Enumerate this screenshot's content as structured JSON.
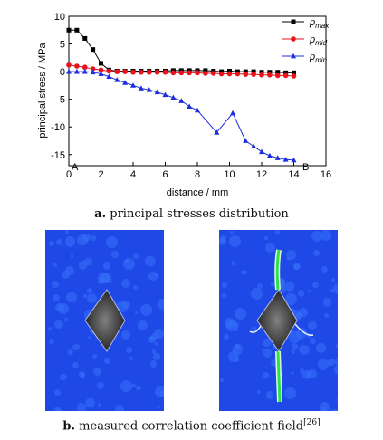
{
  "chart_data": {
    "type": "line",
    "xlabel": "distance / mm",
    "ylabel": "principal stress / MPa",
    "xlim": [
      0,
      16
    ],
    "ylim": [
      -17,
      10
    ],
    "xticks": [
      0,
      2,
      4,
      6,
      8,
      10,
      12,
      14,
      16
    ],
    "yticks": [
      10,
      5,
      0,
      -5,
      -10,
      -15
    ],
    "legend_position": "top-right",
    "point_labels": {
      "start": "A",
      "end": "B"
    },
    "series": [
      {
        "name": "p_max",
        "label_main": "p",
        "label_sub": "max",
        "color": "#000000",
        "marker": "square",
        "x": [
          0,
          0.5,
          1.0,
          1.5,
          2.0,
          2.5,
          3.0,
          3.5,
          4.0,
          4.5,
          5.0,
          5.5,
          6.0,
          6.5,
          7.0,
          7.5,
          8.0,
          8.5,
          9.0,
          9.5,
          10.0,
          10.5,
          11.0,
          11.5,
          12.0,
          12.5,
          13.0,
          13.5,
          14.0
        ],
        "y": [
          7.5,
          7.5,
          6.0,
          4.0,
          1.5,
          0.3,
          0.1,
          0.1,
          0.1,
          0.1,
          0.1,
          0.1,
          0.1,
          0.2,
          0.2,
          0.2,
          0.2,
          0.2,
          0.1,
          0.0,
          0.1,
          0.0,
          0.0,
          0.0,
          -0.1,
          -0.1,
          -0.1,
          -0.2,
          -0.2
        ]
      },
      {
        "name": "p_mid",
        "label_main": "p",
        "label_sub": "mid",
        "color": "#e8141b",
        "marker": "circle",
        "x": [
          0,
          0.5,
          1.0,
          1.5,
          2.0,
          2.5,
          3.0,
          3.5,
          4.0,
          4.5,
          5.0,
          5.5,
          6.0,
          6.5,
          7.0,
          7.5,
          8.0,
          8.5,
          9.0,
          9.5,
          10.0,
          10.5,
          11.0,
          11.5,
          12.0,
          12.5,
          13.0,
          13.5,
          14.0
        ],
        "y": [
          1.2,
          1.0,
          0.8,
          0.5,
          0.3,
          0.1,
          0.0,
          0.0,
          -0.1,
          -0.1,
          -0.1,
          -0.1,
          -0.1,
          -0.2,
          -0.2,
          -0.2,
          -0.2,
          -0.3,
          -0.3,
          -0.4,
          -0.4,
          -0.4,
          -0.5,
          -0.5,
          -0.6,
          -0.6,
          -0.7,
          -0.7,
          -0.8
        ]
      },
      {
        "name": "p_min",
        "label_main": "p",
        "label_sub": "min",
        "color": "#1c2ee0",
        "marker": "triangle",
        "x": [
          0,
          0.5,
          1.0,
          1.5,
          2.0,
          2.5,
          3.0,
          3.5,
          4.0,
          4.5,
          5.0,
          5.5,
          6.0,
          6.5,
          7.0,
          7.5,
          8.0,
          9.2,
          10.2,
          11.0,
          11.5,
          12.0,
          12.5,
          13.0,
          13.5,
          14.0
        ],
        "y": [
          0.0,
          0.0,
          0.0,
          -0.1,
          -0.4,
          -0.9,
          -1.5,
          -2.0,
          -2.5,
          -3.0,
          -3.3,
          -3.7,
          -4.2,
          -4.7,
          -5.3,
          -6.3,
          -7.0,
          -11.0,
          -7.5,
          -12.5,
          -13.5,
          -14.5,
          -15.2,
          -15.6,
          -15.9,
          -16.0
        ]
      }
    ]
  },
  "captions": {
    "a_letter": "a.",
    "a_text": "principal stresses distribution",
    "b_letter": "b.",
    "b_text": "measured correlation coefficient field",
    "b_ref": "[26]"
  },
  "colors": {
    "field_background": "#1f49e6",
    "hole_fill": "#3a3a3a",
    "crack_green": "#2ee04a"
  }
}
